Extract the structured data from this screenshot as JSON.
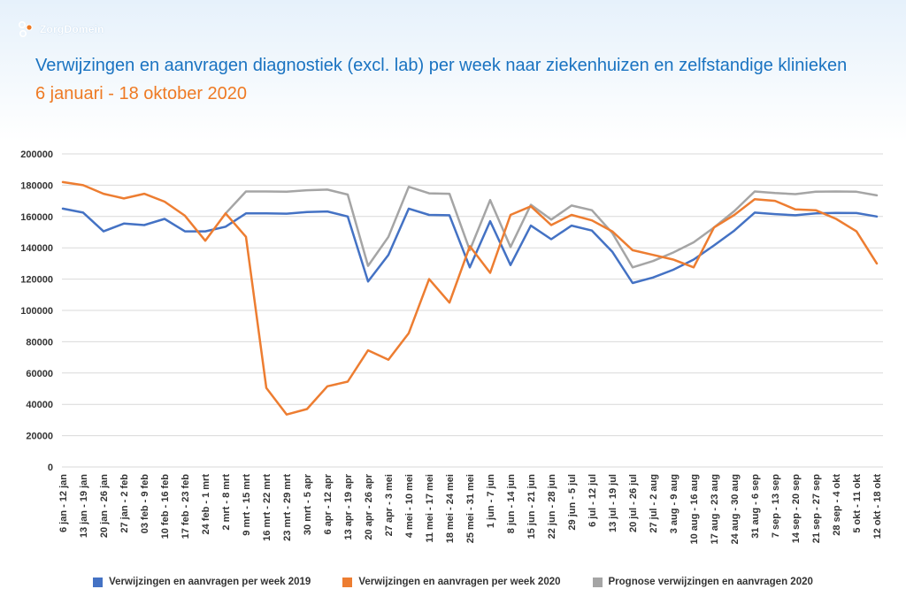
{
  "brand": {
    "name": "ZorgDomein"
  },
  "header": {
    "title": "Verwijzingen en aanvragen diagnostiek (excl. lab) per week naar ziekenhuizen en zelfstandige klinieken",
    "subtitle": "6 januari - 18 oktober 2020"
  },
  "colors": {
    "title": "#1a73c1",
    "subtitle": "#ee7a24",
    "grid": "#d9d9d9"
  },
  "chart_data": {
    "type": "line",
    "title": "Verwijzingen en aanvragen diagnostiek (excl. lab) per week naar ziekenhuizen en zelfstandige klinieken",
    "subtitle": "6 januari - 18 oktober 2020",
    "xlabel": "",
    "ylabel": "",
    "ylim": [
      0,
      200000
    ],
    "yticks": [
      0,
      20000,
      40000,
      60000,
      80000,
      100000,
      120000,
      140000,
      160000,
      180000,
      200000
    ],
    "grid": true,
    "legend_position": "bottom",
    "categories": [
      "6 jan - 12 jan",
      "13 jan - 19 jan",
      "20 jan - 26 jan",
      "27 jan - 2 feb",
      "03 feb - 9 feb",
      "10 feb - 16 feb",
      "17 feb - 23 feb",
      "24 feb - 1 mrt",
      "2 mrt - 8 mrt",
      "9 mrt - 15 mrt",
      "16 mrt - 22 mrt",
      "23 mrt - 29 mrt",
      "30 mrt - 5 apr",
      "6 apr - 12 apr",
      "13 apr - 19 apr",
      "20 apr - 26 apr",
      "27 apr - 3 mei",
      "4 mei - 10 mei",
      "11 mei - 17 mei",
      "18 mei - 24 mei",
      "25 mei - 31 mei",
      "1 jun - 7 jun",
      "8 jun - 14 jun",
      "15 jun - 21 jun",
      "22 jun - 28 jun",
      "29 jun - 5 jul",
      "6 jul - 12 jul",
      "13 jul - 19 jul",
      "20 jul - 26 jul",
      "27 jul - 2 aug",
      "3 aug - 9 aug",
      "10 aug - 16 aug",
      "17 aug - 23 aug",
      "24 aug - 30 aug",
      "31 aug - 6 sep",
      "7 sep - 13 sep",
      "14 sep - 20 sep",
      "21 sep - 27 sep",
      "28 sep - 4 okt",
      "5 okt - 11 okt",
      "12 okt - 18 okt"
    ],
    "series": [
      {
        "name": "Verwijzingen en aanvragen per week 2019",
        "color": "#4472c4",
        "values": [
          165000,
          162500,
          150500,
          155500,
          154500,
          158500,
          150500,
          150500,
          153500,
          162000,
          162000,
          161800,
          162800,
          163200,
          160000,
          118500,
          135500,
          165000,
          161000,
          160800,
          127500,
          157000,
          129000,
          154200,
          145500,
          154200,
          151000,
          137500,
          117500,
          121000,
          126000,
          132500,
          141500,
          151000,
          162500,
          161500,
          160800,
          162000,
          162300,
          162200,
          160000
        ]
      },
      {
        "name": "Verwijzingen en aanvragen per week 2020",
        "color": "#ed7d31",
        "values": [
          182000,
          180000,
          174500,
          171500,
          174500,
          169500,
          160500,
          144500,
          162000,
          147000,
          50500,
          33500,
          37000,
          51500,
          54500,
          74500,
          68500,
          85500,
          120000,
          105000,
          141000,
          124000,
          161000,
          166500,
          154500,
          161000,
          157500,
          150500,
          138500,
          135500,
          132500,
          127500,
          153000,
          161000,
          171000,
          170000,
          164500,
          164000,
          158500,
          150500,
          130000
        ]
      },
      {
        "name": "Prognose verwijzingen en aanvragen 2020",
        "color": "#a5a5a5",
        "values": [
          null,
          null,
          null,
          null,
          null,
          null,
          null,
          null,
          162000,
          176000,
          176000,
          175800,
          176800,
          177200,
          174000,
          128500,
          147000,
          179000,
          174800,
          174500,
          138500,
          170500,
          140500,
          167500,
          158000,
          167000,
          164000,
          149500,
          127500,
          131500,
          137000,
          143500,
          153000,
          163500,
          176000,
          175000,
          174300,
          175800,
          176000,
          175800,
          173500
        ]
      }
    ]
  }
}
